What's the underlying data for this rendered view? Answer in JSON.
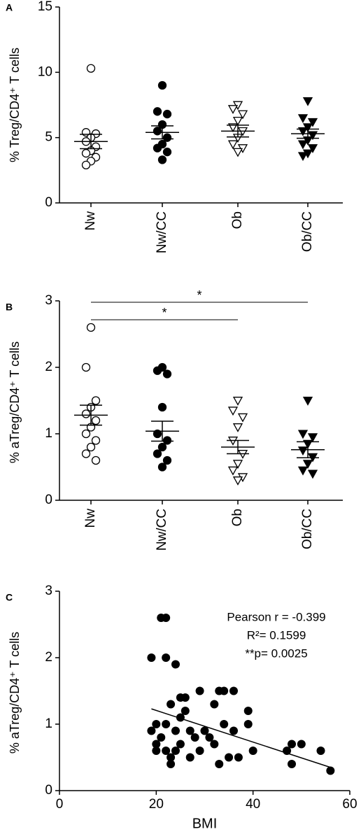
{
  "chart_data": [
    {
      "type": "dot",
      "panel": "A",
      "y_label": "% Treg/CD4⁺ T cells",
      "categories": [
        "Nw",
        "Nw/CC",
        "Ob",
        "Ob/CC"
      ],
      "ylim": [
        0,
        15
      ],
      "yticks": [
        0,
        5,
        10,
        15
      ],
      "color": "#000000",
      "groups": [
        {
          "marker": "open-circle",
          "points": [
            10.3,
            5.4,
            5.3,
            5.0,
            4.7,
            4.3,
            4.0,
            3.8,
            3.5,
            3.2,
            2.9
          ],
          "mean": 4.7,
          "sem": 0.55
        },
        {
          "marker": "filled-circle",
          "points": [
            9.0,
            7.0,
            6.8,
            6.0,
            5.5,
            5.0,
            4.5,
            4.2,
            3.9,
            3.3
          ],
          "mean": 5.4,
          "sem": 0.5
        },
        {
          "marker": "open-triangle-down",
          "points": [
            7.5,
            7.2,
            6.8,
            6.3,
            5.8,
            5.5,
            5.0,
            4.5,
            4.2,
            3.9
          ],
          "mean": 5.5,
          "sem": 0.45
        },
        {
          "marker": "filled-triangle-down",
          "points": [
            7.8,
            6.5,
            6.2,
            5.8,
            5.5,
            5.2,
            4.8,
            4.5,
            4.2,
            3.8,
            3.6
          ],
          "mean": 5.3,
          "sem": 0.35
        }
      ]
    },
    {
      "type": "dot",
      "panel": "B",
      "y_label": "% aTreg/CD4⁺ T cells",
      "categories": [
        "Nw",
        "Nw/CC",
        "Ob",
        "Ob/CC"
      ],
      "ylim": [
        0,
        3
      ],
      "yticks": [
        0,
        1,
        2,
        3
      ],
      "color": "#000000",
      "groups": [
        {
          "marker": "open-circle",
          "points": [
            2.6,
            2.0,
            1.5,
            1.4,
            1.3,
            1.2,
            1.1,
            1.0,
            0.9,
            0.8,
            0.7,
            0.6
          ],
          "mean": 1.28,
          "sem": 0.15
        },
        {
          "marker": "filled-circle",
          "points": [
            2.0,
            1.95,
            1.9,
            1.4,
            1.0,
            0.9,
            0.8,
            0.7,
            0.6,
            0.5
          ],
          "mean": 1.04,
          "sem": 0.15
        },
        {
          "marker": "open-triangle-down",
          "points": [
            1.5,
            1.35,
            1.25,
            1.1,
            0.9,
            0.7,
            0.55,
            0.45,
            0.35,
            0.3
          ],
          "mean": 0.8,
          "sem": 0.1
        },
        {
          "marker": "filled-triangle-down",
          "points": [
            1.5,
            1.0,
            0.95,
            0.85,
            0.75,
            0.65,
            0.55,
            0.45,
            0.4
          ],
          "mean": 0.76,
          "sem": 0.12
        }
      ],
      "comparisons": [
        {
          "groups": [
            "Nw",
            "Ob"
          ],
          "label": "*"
        },
        {
          "groups": [
            "Nw",
            "Ob/CC"
          ],
          "label": "*"
        }
      ]
    },
    {
      "type": "scatter",
      "panel": "C",
      "y_label": "% aTreg/CD4⁺ T cells",
      "x_label": "BMI",
      "xlim": [
        0,
        60
      ],
      "xticks": [
        0,
        20,
        40,
        60
      ],
      "ylim": [
        0,
        3
      ],
      "yticks": [
        0,
        1,
        2,
        3
      ],
      "color": "#000000",
      "x": [
        21,
        22,
        19,
        22,
        24,
        20,
        20,
        21,
        22,
        22,
        23,
        23,
        24,
        23,
        25,
        26,
        25,
        26,
        24,
        25,
        27,
        27,
        28,
        29,
        29,
        30,
        31,
        32,
        32,
        33,
        34,
        34,
        33,
        35,
        36,
        36,
        37,
        39,
        39,
        40,
        47,
        48,
        48,
        50,
        54,
        56,
        20,
        19
      ],
      "y": [
        2.6,
        2.6,
        2.0,
        2.0,
        1.9,
        0.7,
        1.0,
        0.8,
        1.0,
        0.6,
        0.5,
        0.4,
        0.6,
        1.3,
        1.4,
        1.4,
        1.1,
        1.2,
        0.9,
        0.7,
        0.9,
        0.5,
        0.8,
        1.5,
        0.6,
        0.9,
        0.8,
        1.3,
        0.7,
        1.5,
        1.5,
        1.0,
        0.4,
        0.5,
        1.5,
        0.9,
        0.5,
        1.2,
        1.0,
        0.6,
        0.6,
        0.4,
        0.7,
        0.7,
        0.6,
        0.3,
        0.6,
        0.9
      ],
      "fit": {
        "x": [
          19,
          56
        ],
        "y": [
          1.23,
          0.35
        ]
      },
      "annotations": [
        "Pearson r = -0.399",
        "R²= 0.1599",
        "**p= 0.0025"
      ]
    }
  ]
}
